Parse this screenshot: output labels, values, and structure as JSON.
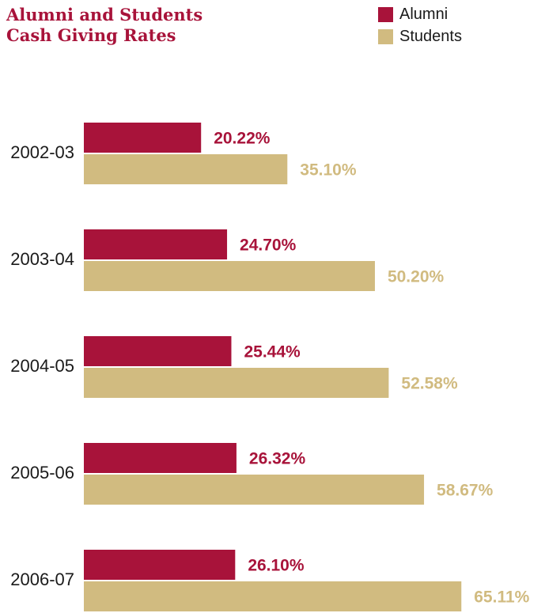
{
  "title_lines": [
    "Alumni and Students",
    "Cash Giving Rates"
  ],
  "legend": [
    {
      "label": "Alumni",
      "color": "#a8133a"
    },
    {
      "label": "Students",
      "color": "#d1bb80"
    }
  ],
  "chart_data": {
    "type": "bar",
    "orientation": "horizontal",
    "title": "Alumni and Students Cash Giving Rates",
    "categories": [
      "2002-03",
      "2003-04",
      "2004-05",
      "2005-06",
      "2006-07"
    ],
    "series": [
      {
        "name": "Alumni",
        "color": "#a8133a",
        "values": [
          20.22,
          24.7,
          25.44,
          26.32,
          26.1
        ],
        "labels": [
          "20.22%",
          "24.70%",
          "25.44%",
          "26.32%",
          "26.10%"
        ]
      },
      {
        "name": "Students",
        "color": "#d1bb80",
        "values": [
          35.1,
          50.2,
          52.58,
          58.67,
          65.11
        ],
        "labels": [
          "35.10%",
          "50.20%",
          "52.58%",
          "58.67%",
          "65.11%"
        ]
      }
    ],
    "unit": "%",
    "legend_position": "top-right",
    "grid": false
  }
}
